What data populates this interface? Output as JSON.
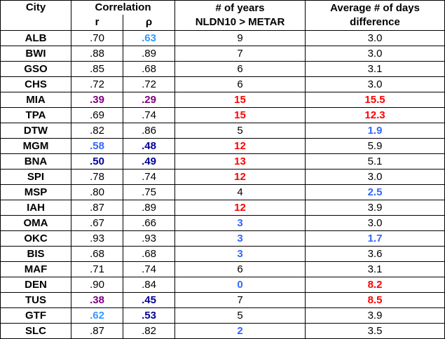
{
  "headers": {
    "city": "City",
    "correlation": "Correlation",
    "r": "r",
    "rho": "ρ",
    "years_line1": "# of years",
    "years_line2": "NLDN10 > METAR",
    "days_line1": "Average # of days",
    "days_line2": "difference"
  },
  "colors": {
    "default": "#000000",
    "lightblue": "#3399ff",
    "blue": "#3366ff",
    "darkblue": "#000099",
    "purple": "#800080",
    "red": "#ff0000"
  },
  "rows": [
    {
      "city": "ALB",
      "r": ".70",
      "rho": ".63",
      "years": "9",
      "days": "3.0",
      "r_c": "default",
      "rho_c": "lightblue",
      "years_c": "default",
      "days_c": "default"
    },
    {
      "city": "BWI",
      "r": ".88",
      "rho": ".89",
      "years": "7",
      "days": "3.0",
      "r_c": "default",
      "rho_c": "default",
      "years_c": "default",
      "days_c": "default"
    },
    {
      "city": "GSO",
      "r": ".85",
      "rho": ".68",
      "years": "6",
      "days": "3.1",
      "r_c": "default",
      "rho_c": "default",
      "years_c": "default",
      "days_c": "default"
    },
    {
      "city": "CHS",
      "r": ".72",
      "rho": ".72",
      "years": "6",
      "days": "3.0",
      "r_c": "default",
      "rho_c": "default",
      "years_c": "default",
      "days_c": "default"
    },
    {
      "city": "MIA",
      "r": ".39",
      "rho": ".29",
      "years": "15",
      "days": "15.5",
      "r_c": "purple",
      "rho_c": "purple",
      "years_c": "red",
      "days_c": "red"
    },
    {
      "city": "TPA",
      "r": ".69",
      "rho": ".74",
      "years": "15",
      "days": "12.3",
      "r_c": "default",
      "rho_c": "default",
      "years_c": "red",
      "days_c": "red"
    },
    {
      "city": "DTW",
      "r": ".82",
      "rho": ".86",
      "years": "5",
      "days": "1.9",
      "r_c": "default",
      "rho_c": "default",
      "years_c": "default",
      "days_c": "blue"
    },
    {
      "city": "MGM",
      "r": ".58",
      "rho": ".48",
      "years": "12",
      "days": "5.9",
      "r_c": "blue",
      "rho_c": "darkblue",
      "years_c": "red",
      "days_c": "default"
    },
    {
      "city": "BNA",
      "r": ".50",
      "rho": ".49",
      "years": "13",
      "days": "5.1",
      "r_c": "darkblue",
      "rho_c": "darkblue",
      "years_c": "red",
      "days_c": "default"
    },
    {
      "city": "SPI",
      "r": ".78",
      "rho": ".74",
      "years": "12",
      "days": "3.0",
      "r_c": "default",
      "rho_c": "default",
      "years_c": "red",
      "days_c": "default"
    },
    {
      "city": "MSP",
      "r": ".80",
      "rho": ".75",
      "years": "4",
      "days": "2.5",
      "r_c": "default",
      "rho_c": "default",
      "years_c": "default",
      "days_c": "blue"
    },
    {
      "city": "IAH",
      "r": ".87",
      "rho": ".89",
      "years": "12",
      "days": "3.9",
      "r_c": "default",
      "rho_c": "default",
      "years_c": "red",
      "days_c": "default"
    },
    {
      "city": "OMA",
      "r": ".67",
      "rho": ".66",
      "years": "3",
      "days": "3.0",
      "r_c": "default",
      "rho_c": "default",
      "years_c": "blue",
      "days_c": "default"
    },
    {
      "city": "OKC",
      "r": ".93",
      "rho": ".93",
      "years": "3",
      "days": "1.7",
      "r_c": "default",
      "rho_c": "default",
      "years_c": "blue",
      "days_c": "blue"
    },
    {
      "city": "BIS",
      "r": ".68",
      "rho": ".68",
      "years": "3",
      "days": "3.6",
      "r_c": "default",
      "rho_c": "default",
      "years_c": "blue",
      "days_c": "default"
    },
    {
      "city": "MAF",
      "r": ".71",
      "rho": ".74",
      "years": "6",
      "days": "3.1",
      "r_c": "default",
      "rho_c": "default",
      "years_c": "default",
      "days_c": "default"
    },
    {
      "city": "DEN",
      "r": ".90",
      "rho": ".84",
      "years": "0",
      "days": "8.2",
      "r_c": "default",
      "rho_c": "default",
      "years_c": "blue",
      "days_c": "red"
    },
    {
      "city": "TUS",
      "r": ".38",
      "rho": ".45",
      "years": "7",
      "days": "8.5",
      "r_c": "purple",
      "rho_c": "darkblue",
      "years_c": "default",
      "days_c": "red"
    },
    {
      "city": "GTF",
      "r": ".62",
      "rho": ".53",
      "years": "5",
      "days": "3.9",
      "r_c": "lightblue",
      "rho_c": "darkblue",
      "years_c": "default",
      "days_c": "default"
    },
    {
      "city": "SLC",
      "r": ".87",
      "rho": ".82",
      "years": "2",
      "days": "3.5",
      "r_c": "default",
      "rho_c": "default",
      "years_c": "blue",
      "days_c": "default"
    }
  ]
}
